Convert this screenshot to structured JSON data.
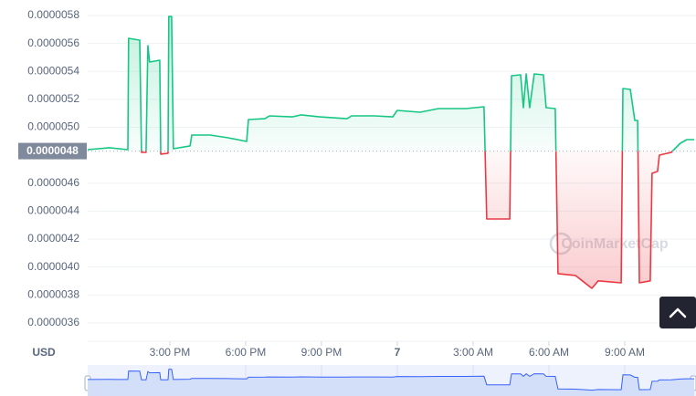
{
  "chart_data": {
    "type": "line",
    "currency_label": "USD",
    "watermark": "CoinMarketCap",
    "x": [
      11.75,
      12.61,
      13.34,
      13.37,
      13.81,
      13.88,
      14.06,
      14.13,
      14.2,
      14.6,
      14.64,
      14.93,
      14.96,
      15.07,
      15.14,
      15.8,
      15.87,
      16.59,
      17.31,
      18.04,
      18.11,
      18.76,
      18.94,
      19.84,
      20.2,
      20.93,
      22.01,
      22.19,
      23.1,
      23.82,
      24.0,
      24.9,
      25.63,
      26.71,
      27.43,
      27.54,
      28.45,
      28.52,
      28.88,
      28.99,
      29.1,
      29.24,
      29.42,
      29.78,
      29.89,
      30.25,
      30.36,
      31.05,
      31.7,
      31.95,
      32.86,
      32.93,
      33.22,
      33.4,
      33.51,
      33.58,
      34.01,
      34.08,
      34.3,
      34.37,
      34.84,
      35.2,
      35.46,
      35.75
    ],
    "series": [
      {
        "color": "#16c784",
        "color_below": "#ea3943",
        "values": [
          4.84e-06,
          4.854e-06,
          4.84e-06,
          5.637e-06,
          5.624e-06,
          4.821e-06,
          4.821e-06,
          5.585e-06,
          5.467e-06,
          5.48e-06,
          4.808e-06,
          4.814e-06,
          5.793e-06,
          5.793e-06,
          4.847e-06,
          4.867e-06,
          4.945e-06,
          4.945e-06,
          4.925e-06,
          4.899e-06,
          5.056e-06,
          5.062e-06,
          5.082e-06,
          5.075e-06,
          5.089e-06,
          5.075e-06,
          5.062e-06,
          5.082e-06,
          5.082e-06,
          5.075e-06,
          5.121e-06,
          5.108e-06,
          5.134e-06,
          5.134e-06,
          5.147e-06,
          4.344e-06,
          4.344e-06,
          5.369e-06,
          5.376e-06,
          5.141e-06,
          5.382e-06,
          5.141e-06,
          5.382e-06,
          5.376e-06,
          5.141e-06,
          5.134e-06,
          3.953e-06,
          3.94e-06,
          3.848e-06,
          3.901e-06,
          3.887e-06,
          5.278e-06,
          5.271e-06,
          5.049e-06,
          5.049e-06,
          3.887e-06,
          3.901e-06,
          4.671e-06,
          4.684e-06,
          4.801e-06,
          4.821e-06,
          4.886e-06,
          4.912e-06,
          4.912e-06
        ]
      }
    ],
    "reference": {
      "value": 4.83e-06,
      "label": "0.0000048"
    },
    "xlim": [
      11.75,
      35.82
    ],
    "ylim": [
      3.469e-06,
      5.859e-06
    ],
    "xticks": [
      {
        "value": 15,
        "label": "3:00 PM"
      },
      {
        "value": 18,
        "label": "6:00 PM"
      },
      {
        "value": 21,
        "label": "9:00 PM"
      },
      {
        "value": 24,
        "label": "7"
      },
      {
        "value": 27,
        "label": "3:00 AM"
      },
      {
        "value": 30,
        "label": "6:00 AM"
      },
      {
        "value": 33,
        "label": "9:00 AM"
      }
    ],
    "yticks": [
      {
        "value": 3.6e-06,
        "label": "0.0000036"
      },
      {
        "value": 3.8e-06,
        "label": "0.0000038"
      },
      {
        "value": 4e-06,
        "label": "0.0000040"
      },
      {
        "value": 4.2e-06,
        "label": "0.0000042"
      },
      {
        "value": 4.4e-06,
        "label": "0.0000044"
      },
      {
        "value": 4.6e-06,
        "label": "0.0000046"
      },
      {
        "value": 5e-06,
        "label": "0.0000050"
      },
      {
        "value": 5.2e-06,
        "label": "0.0000052"
      },
      {
        "value": 5.4e-06,
        "label": "0.0000054"
      },
      {
        "value": 5.6e-06,
        "label": "0.0000056"
      },
      {
        "value": 5.8e-06,
        "label": "0.0000058"
      }
    ],
    "grid": true
  }
}
